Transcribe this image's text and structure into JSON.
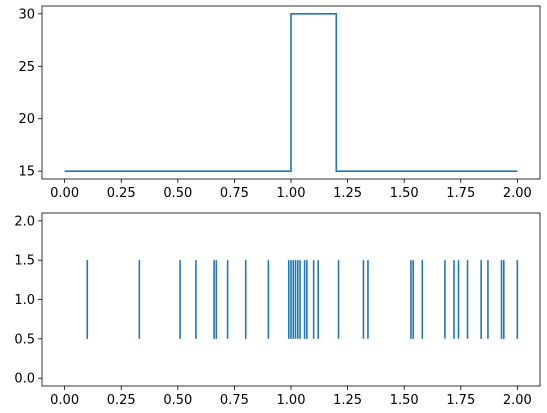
{
  "chart_data": [
    {
      "type": "line",
      "title": "",
      "xlabel": "",
      "ylabel": "",
      "xlim": [
        -0.1,
        2.1
      ],
      "ylim": [
        14.25,
        30.75
      ],
      "xticks": [
        "0.00",
        "0.25",
        "0.50",
        "0.75",
        "1.00",
        "1.25",
        "1.50",
        "1.75",
        "2.00"
      ],
      "yticks": [
        "15",
        "20",
        "25",
        "30"
      ],
      "grid": false,
      "legend": "none",
      "color": "#1f77b4",
      "series": [
        {
          "x": [
            0.0,
            1.0,
            1.0,
            1.2,
            1.2,
            2.0
          ],
          "y": [
            15,
            15,
            30,
            30,
            15,
            15
          ]
        }
      ]
    },
    {
      "type": "eventplot",
      "title": "",
      "xlabel": "",
      "ylabel": "",
      "xlim": [
        -0.1,
        2.1
      ],
      "ylim": [
        -0.1,
        2.1
      ],
      "xticks": [
        "0.00",
        "0.25",
        "0.50",
        "0.75",
        "1.00",
        "1.25",
        "1.50",
        "1.75",
        "2.00"
      ],
      "yticks": [
        "0.0",
        "0.5",
        "1.0",
        "1.5",
        "2.0"
      ],
      "grid": false,
      "legend": "none",
      "color": "#1f77b4",
      "line_offset": 1.0,
      "line_length": 1.0,
      "events": [
        0.1,
        0.33,
        0.51,
        0.58,
        0.66,
        0.67,
        0.72,
        0.8,
        0.9,
        0.99,
        1.0,
        1.01,
        1.02,
        1.03,
        1.04,
        1.06,
        1.07,
        1.1,
        1.12,
        1.21,
        1.32,
        1.34,
        1.53,
        1.54,
        1.58,
        1.68,
        1.72,
        1.74,
        1.78,
        1.84,
        1.87,
        1.93,
        1.94,
        2.0
      ]
    }
  ]
}
